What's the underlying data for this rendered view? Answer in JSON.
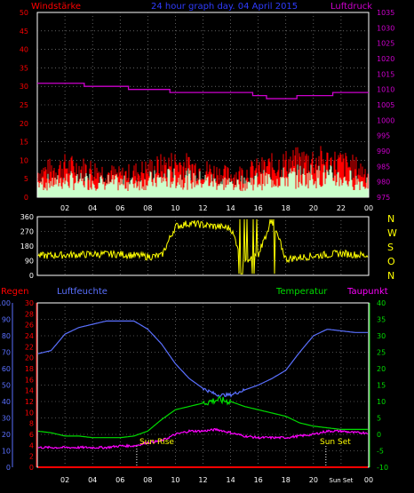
{
  "colors": {
    "background": "#000000",
    "axis_white": "#ffffff",
    "grid": "#9a9a9a",
    "wind_label": "#ff0000",
    "title": "#2f3cff",
    "pressure": "#cc00cc",
    "gust_red": "#ff0000",
    "wind_avg": "#ccffcc",
    "direction": "#ffff00",
    "rain": "#ff0000",
    "humidity": "#5a70ff",
    "temperature": "#00dd00",
    "dewpoint": "#ff00ff"
  },
  "header": {
    "left_label": "Windstärke",
    "title": "24 hour graph day. 04 April 2015",
    "right_label": "Luftdruck"
  },
  "compass": [
    "N",
    "W",
    "S",
    "O",
    "N"
  ],
  "legend": {
    "rain": "Regen",
    "humidity": "Luftfeuchte",
    "temperature": "Temperatur",
    "dewpoint": "Taupunkt"
  },
  "sun_labels": {
    "rise": "Sun Rise",
    "set": "Sun Set",
    "set_axis": "Sun Set"
  },
  "chart_data": [
    {
      "type": "area",
      "title": "24 hour graph day. 04 April 2015",
      "xlabel": "",
      "x_ticks": [
        "02",
        "04",
        "06",
        "08",
        "10",
        "12",
        "14",
        "16",
        "18",
        "20",
        "22",
        "00"
      ],
      "y_left_ticks": [
        0,
        5,
        10,
        15,
        20,
        25,
        30,
        35,
        40,
        45,
        50
      ],
      "y_left_label": "Windstärke",
      "ylim_left": [
        0,
        50
      ],
      "y_right_ticks": [
        975,
        980,
        985,
        990,
        995,
        1000,
        1005,
        1010,
        1015,
        1020,
        1025,
        1030,
        1035
      ],
      "y_right_label": "Luftdruck",
      "ylim_right": [
        975,
        1035
      ],
      "grid": true,
      "hours": [
        0,
        2,
        4,
        6,
        8,
        10,
        12,
        14,
        16,
        18,
        20,
        22,
        24
      ],
      "series": [
        {
          "name": "Windstärke",
          "role": "gust",
          "values": [
            8,
            10,
            9,
            7,
            9,
            11,
            9,
            7,
            9,
            11,
            12,
            11,
            8
          ]
        },
        {
          "name": "Windstärke",
          "role": "mean",
          "values": [
            5,
            6,
            6,
            5,
            6,
            7,
            6,
            5,
            6,
            7,
            8,
            7,
            5
          ]
        },
        {
          "name": "Luftdruck",
          "role": "pressure",
          "hours": [
            0,
            2.2,
            3.4,
            6.6,
            9.6,
            12.4,
            15.6,
            16.6,
            17.6,
            18.8,
            20.4,
            21.4,
            24
          ],
          "values": [
            1012,
            1012,
            1011,
            1010,
            1009,
            1009,
            1008,
            1007,
            1007,
            1008,
            1008,
            1009,
            1009
          ]
        }
      ]
    },
    {
      "type": "line",
      "title": "",
      "x_ticks": [
        "02",
        "04",
        "06",
        "08",
        "10",
        "12",
        "14",
        "16",
        "18",
        "20",
        "22",
        "00"
      ],
      "y_ticks": [
        0,
        90,
        180,
        270,
        360
      ],
      "ylim": [
        0,
        360
      ],
      "grid": true,
      "series": [
        {
          "name": "",
          "hours": [
            0,
            2,
            4,
            6,
            8,
            9,
            10,
            11,
            12,
            13,
            14,
            15,
            16,
            17,
            18,
            20,
            22,
            24
          ],
          "values": [
            120,
            125,
            130,
            130,
            115,
            120,
            300,
            320,
            310,
            300,
            290,
            80,
            130,
            340,
            100,
            120,
            135,
            120
          ]
        }
      ]
    },
    {
      "type": "line",
      "title": "",
      "x_ticks": [
        "02",
        "04",
        "06",
        "08",
        "10",
        "12",
        "14",
        "16",
        "18",
        "20",
        "Sun Set",
        "00"
      ],
      "y_left_ticks": [
        0,
        10,
        20,
        30,
        40,
        50,
        60,
        70,
        80,
        90,
        100
      ],
      "y_left2_ticks": [
        0,
        2,
        4,
        6,
        8,
        10,
        12,
        14,
        16,
        18,
        20,
        22,
        24,
        26,
        28,
        30
      ],
      "y_right_ticks": [
        -10,
        -5,
        0,
        5,
        10,
        15,
        20,
        25,
        30,
        35,
        40
      ],
      "ylim_humidity": [
        0,
        100
      ],
      "ylim_temperature": [
        -10,
        40
      ],
      "grid": true,
      "hours": [
        0,
        1,
        2,
        3,
        4,
        5,
        6,
        7,
        8,
        9,
        10,
        11,
        12,
        13,
        14,
        15,
        16,
        17,
        18,
        19,
        20,
        21,
        22,
        23,
        24
      ],
      "series": [
        {
          "name": "Regen",
          "values": [
            0,
            0,
            0,
            0,
            0,
            0,
            0,
            0,
            0,
            0,
            0,
            0,
            0,
            0,
            0,
            0,
            0,
            0,
            0,
            0,
            0,
            0,
            0,
            0,
            0
          ]
        },
        {
          "name": "Luftfeuchte",
          "values": [
            69,
            71,
            81,
            85,
            87,
            89,
            89,
            89,
            84,
            75,
            63,
            54,
            48,
            44,
            44,
            47,
            50,
            54,
            59,
            70,
            80,
            84,
            83,
            82,
            82
          ]
        },
        {
          "name": "Temperatur",
          "values": [
            1,
            0.5,
            -0.5,
            -0.5,
            -1,
            -1,
            -1,
            -0.5,
            1,
            4.5,
            7.5,
            8.5,
            9.5,
            10.5,
            10,
            8.5,
            7.5,
            6.5,
            5.5,
            3.5,
            2.5,
            2,
            1.5,
            1.5,
            1.5
          ]
        },
        {
          "name": "Taupunkt",
          "values": [
            -4,
            -4,
            -4,
            -4,
            -4,
            -4,
            -3.5,
            -3.5,
            -2.5,
            -2,
            0,
            1,
            1,
            1.5,
            0.5,
            -0.5,
            -1,
            -1,
            -1,
            -0.5,
            0,
            1,
            1,
            0.5,
            0.5
          ]
        }
      ],
      "annotations": [
        "Sun Rise",
        "Sun Set"
      ]
    }
  ]
}
